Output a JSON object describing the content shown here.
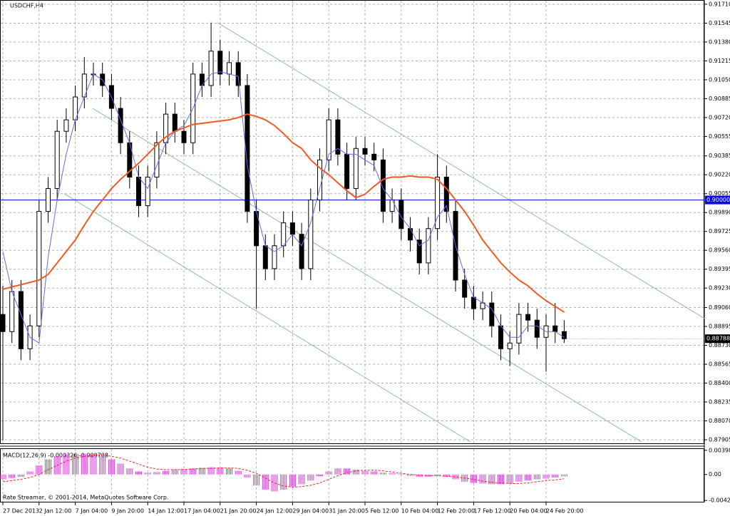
{
  "chart_data": {
    "type": "candlestick",
    "title": "USDCHF,H4",
    "footer": "Rate Streamer, © 2001-2014, MetaQuotes Software Corp.",
    "categories": [
      "27 Dec 2013",
      null,
      null,
      null,
      "2 Jan 12:00",
      null,
      null,
      null,
      "7 Jan 04:00",
      null,
      null,
      null,
      "9 Jan 20:00",
      null,
      null,
      null,
      "14 Jan 12:00",
      null,
      null,
      null,
      "17 Jan 04:00",
      null,
      null,
      null,
      "21 Jan 20:00",
      null,
      null,
      null,
      "24 Jan 12:00",
      null,
      null,
      null,
      "29 Jan 04:00",
      null,
      null,
      null,
      "31 Jan 20:00",
      null,
      null,
      null,
      "5 Feb 12:00",
      null,
      null,
      null,
      "10 Feb 04:00",
      null,
      null,
      null,
      "12 Feb 20:00",
      null,
      null,
      null,
      "17 Feb 12:00",
      null,
      null,
      null,
      "20 Feb 04:00",
      null,
      null,
      null,
      "24 Feb 20:00",
      null,
      null
    ],
    "open": [
      0.89,
      0.8885,
      0.892,
      0.887,
      0.889,
      0.899,
      0.901,
      0.906,
      0.907,
      0.909,
      0.911,
      0.911,
      0.91,
      0.908,
      0.905,
      0.902,
      0.8995,
      0.902,
      0.905,
      0.9075,
      0.906,
      0.905,
      0.911,
      0.91,
      0.913,
      0.911,
      0.912,
      0.91,
      0.899,
      0.896,
      0.894,
      0.896,
      0.898,
      0.897,
      0.894,
      0.9,
      0.9035,
      0.907,
      0.904,
      0.901,
      0.9045,
      0.904,
      0.9035,
      0.899,
      0.9,
      0.8975,
      0.8965,
      0.8945,
      0.8975,
      0.902,
      0.899,
      0.893,
      0.8915,
      0.8905,
      0.891,
      0.889,
      0.887,
      0.8875,
      0.89,
      0.8895,
      0.888,
      0.889,
      0.8885
    ],
    "high": [
      0.8925,
      0.893,
      0.893,
      0.89,
      0.9,
      0.902,
      0.907,
      0.908,
      0.91,
      0.9125,
      0.912,
      0.912,
      0.911,
      0.909,
      0.906,
      0.903,
      0.903,
      0.906,
      0.9085,
      0.9085,
      0.907,
      0.912,
      0.912,
      0.9155,
      0.914,
      0.913,
      0.913,
      0.911,
      0.9,
      0.897,
      0.897,
      0.899,
      0.899,
      0.898,
      0.901,
      0.9045,
      0.908,
      0.908,
      0.905,
      0.9055,
      0.9055,
      0.905,
      0.9045,
      0.901,
      0.901,
      0.8985,
      0.8975,
      0.8985,
      0.904,
      0.903,
      0.9,
      0.894,
      0.8925,
      0.892,
      0.892,
      0.89,
      0.8885,
      0.891,
      0.891,
      0.8905,
      0.89,
      0.891,
      0.8895
    ],
    "low": [
      0.879,
      0.8875,
      0.886,
      0.886,
      0.888,
      0.898,
      0.9,
      0.905,
      0.906,
      0.908,
      0.91,
      0.909,
      0.907,
      0.904,
      0.901,
      0.8985,
      0.8985,
      0.901,
      0.904,
      0.905,
      0.904,
      0.904,
      0.909,
      0.909,
      0.91,
      0.91,
      0.909,
      0.898,
      0.8905,
      0.893,
      0.893,
      0.895,
      0.896,
      0.893,
      0.893,
      0.899,
      0.9025,
      0.903,
      0.9,
      0.9,
      0.903,
      0.9025,
      0.898,
      0.898,
      0.8965,
      0.8955,
      0.8935,
      0.8935,
      0.8965,
      0.898,
      0.892,
      0.8905,
      0.8895,
      0.8895,
      0.888,
      0.886,
      0.8855,
      0.8865,
      0.8885,
      0.887,
      0.885,
      0.8875,
      0.8875
    ],
    "close": [
      0.8885,
      0.892,
      0.887,
      0.889,
      0.899,
      0.901,
      0.906,
      0.907,
      0.909,
      0.911,
      0.911,
      0.91,
      0.908,
      0.905,
      0.902,
      0.8995,
      0.902,
      0.905,
      0.9075,
      0.906,
      0.905,
      0.911,
      0.91,
      0.913,
      0.911,
      0.912,
      0.91,
      0.899,
      0.896,
      0.894,
      0.896,
      0.898,
      0.897,
      0.894,
      0.9,
      0.9035,
      0.907,
      0.904,
      0.901,
      0.9045,
      0.904,
      0.9035,
      0.899,
      0.9,
      0.8975,
      0.8965,
      0.8945,
      0.8975,
      0.902,
      0.899,
      0.893,
      0.8915,
      0.8905,
      0.891,
      0.889,
      0.887,
      0.8875,
      0.89,
      0.8895,
      0.888,
      0.889,
      0.8885,
      0.88788
    ],
    "color": "#000000",
    "overlays": [
      {
        "color": "#6a6af0",
        "width": 1,
        "values": [
          0.8955,
          0.892,
          0.89,
          0.888,
          0.8875,
          0.895,
          0.9,
          0.904,
          0.907,
          0.909,
          0.911,
          0.9105,
          0.909,
          0.907,
          0.905,
          0.902,
          0.901,
          0.903,
          0.905,
          0.906,
          0.9065,
          0.908,
          0.91,
          0.911,
          0.9112,
          0.911,
          0.9108,
          0.903,
          0.899,
          0.896,
          0.8955,
          0.896,
          0.897,
          0.896,
          0.898,
          0.901,
          0.904,
          0.9045,
          0.904,
          0.904,
          0.9035,
          0.903,
          0.901,
          0.9,
          0.8985,
          0.8975,
          0.896,
          0.8965,
          0.8985,
          0.8995,
          0.896,
          0.8935,
          0.8915,
          0.891,
          0.8905,
          0.889,
          0.888,
          0.888,
          0.889,
          0.889,
          0.8885,
          0.8885,
          0.888
        ]
      },
      {
        "color": "#f05a23",
        "width": 2,
        "values": [
          0.8922,
          0.8924,
          0.8926,
          0.8928,
          0.893,
          0.8935,
          0.8945,
          0.8955,
          0.8965,
          0.8978,
          0.899,
          0.9,
          0.901,
          0.9018,
          0.9025,
          0.9032,
          0.904,
          0.9048,
          0.9055,
          0.906,
          0.9063,
          0.9066,
          0.9067,
          0.9068,
          0.9069,
          0.907,
          0.9072,
          0.9075,
          0.9073,
          0.907,
          0.9065,
          0.9058,
          0.905,
          0.9045,
          0.9035,
          0.9028,
          0.9022,
          0.9015,
          0.9008,
          0.9002,
          0.9005,
          0.9012,
          0.9018,
          0.902,
          0.902,
          0.9021,
          0.902,
          0.902,
          0.9018,
          0.901,
          0.9,
          0.899,
          0.8978,
          0.8965,
          0.8955,
          0.8945,
          0.8937,
          0.893,
          0.8925,
          0.8918,
          0.8912,
          0.8907,
          0.8902
        ]
      }
    ],
    "trendline_color": "#8fbfa0",
    "trendlines": [
      {
        "x": [
          23.7,
          77.5
        ],
        "y": [
          0.9155,
          0.88964
        ]
      },
      {
        "x": [
          9.9,
          70.55
        ],
        "y": [
          0.90801,
          0.87886
        ]
      },
      {
        "x": [
          6.8,
          51.65
        ],
        "y": [
          0.90054,
          0.87886
        ]
      }
    ],
    "hline": {
      "value": 0.9,
      "label": "0.90000",
      "color": "#0000ff"
    },
    "last_price": {
      "value": 0.88788,
      "label": "0.88788"
    },
    "ylim": [
      0.87874,
      0.91747
    ],
    "yticks": [
      {
        "value": 0.9171,
        "label": "0.91710"
      },
      0.91545,
      {
        "value": 0.9138,
        "label": "0.91380"
      },
      0.91215,
      {
        "value": 0.9105,
        "label": "0.91050"
      },
      0.90885,
      {
        "value": 0.9072,
        "label": "0.90720"
      },
      0.90555,
      0.90385,
      {
        "value": 0.9022,
        "label": "0.90220"
      },
      0.90055,
      {
        "value": 0.8989,
        "label": "0.89890"
      },
      0.89725,
      {
        "value": 0.8956,
        "label": "0.89560"
      },
      0.89395,
      {
        "value": 0.8923,
        "label": "0.89230"
      },
      {
        "value": 0.8906,
        "label": "0.89060"
      },
      0.88895,
      {
        "value": 0.8873,
        "label": "0.88730"
      },
      0.88565,
      {
        "value": 0.884,
        "label": "0.88400"
      },
      0.88235,
      {
        "value": 0.8807,
        "label": "0.88070"
      },
      0.87905
    ],
    "grid": true,
    "macd": {
      "label": "MACD(12,26,9) -0.000326 -0.000708",
      "hist_color": "#d23cd2",
      "signal_color": "#ff2020",
      "histogram": [
        -0.0008,
        -0.0006,
        -0.0004,
        0.0005,
        0.0015,
        0.0025,
        0.003,
        0.0033,
        0.0034,
        0.0034,
        0.0033,
        0.003,
        0.0025,
        0.0018,
        0.001,
        0.0005,
        0.0003,
        0.0004,
        0.0006,
        0.0008,
        0.0009,
        0.001,
        0.0011,
        0.0012,
        0.0011,
        0.001,
        0.0006,
        -0.0005,
        -0.0018,
        -0.0025,
        -0.0028,
        -0.0025,
        -0.002,
        -0.0016,
        -0.001,
        -0.0003,
        0.0005,
        0.001,
        0.001,
        0.0008,
        0.0006,
        0.0005,
        0.0003,
        0.0002,
        0.0001,
        -0.0002,
        -0.0004,
        -0.0004,
        -0.0002,
        -0.0004,
        -0.0008,
        -0.0012,
        -0.0014,
        -0.0015,
        -0.0016,
        -0.0016,
        -0.0015,
        -0.0012,
        -0.001,
        -0.0008,
        -0.0007,
        -0.0005,
        -0.000326
      ],
      "signal": [
        -0.0012,
        -0.001,
        -0.0008,
        -0.0005,
        0.0,
        0.0008,
        0.0015,
        0.0022,
        0.0027,
        0.003,
        0.0032,
        0.0032,
        0.003,
        0.0027,
        0.0022,
        0.0017,
        0.0012,
        0.0009,
        0.0008,
        0.0008,
        0.0008,
        0.0009,
        0.001,
        0.001,
        0.0011,
        0.0011,
        0.001,
        0.0007,
        0.0002,
        -0.0006,
        -0.0014,
        -0.0019,
        -0.0021,
        -0.002,
        -0.0018,
        -0.0014,
        -0.0008,
        -0.0002,
        0.0003,
        0.0006,
        0.0007,
        0.0007,
        0.0006,
        0.0004,
        0.0002,
        0.0,
        -0.0001,
        -0.0002,
        -0.0002,
        -0.0003,
        -0.0004,
        -0.0006,
        -0.0008,
        -0.0011,
        -0.0013,
        -0.0014,
        -0.0015,
        -0.0015,
        -0.0014,
        -0.0012,
        -0.001,
        -0.0009,
        -0.000708
      ],
      "ylim": [
        -0.0045,
        0.0042
      ],
      "yticks": [
        0.003983,
        {
          "value": 0,
          "label": "0.00"
        },
        -0.004286
      ]
    }
  }
}
